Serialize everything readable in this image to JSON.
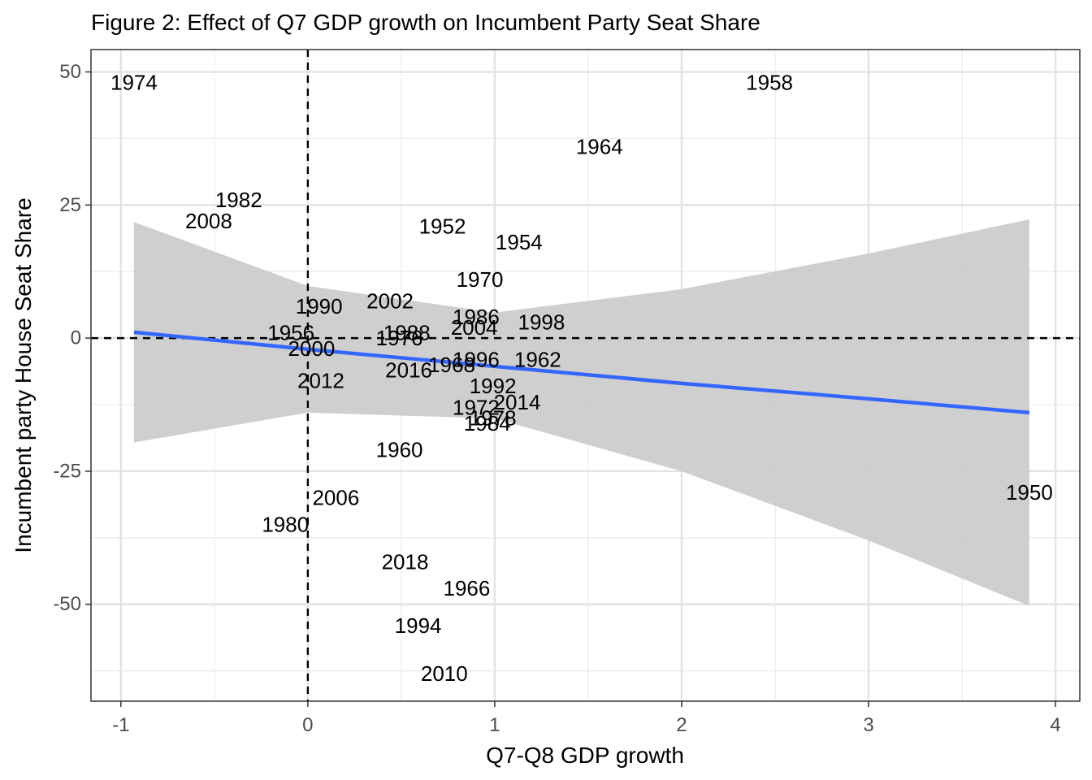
{
  "chart_data": {
    "type": "scatter",
    "title": "Figure 2: Effect of Q7 GDP growth on Incumbent Party Seat Share",
    "xlabel": "Q7-Q8 GDP growth",
    "ylabel": "Incumbent party House Seat Share",
    "xlim": [
      -1.16,
      4.13
    ],
    "ylim": [
      -68.2,
      54.2
    ],
    "x_ticks": [
      -1,
      0,
      1,
      2,
      3,
      4
    ],
    "y_ticks": [
      -50,
      -25,
      0,
      25,
      50
    ],
    "x_tick_labels": [
      "-1",
      "0",
      "1",
      "2",
      "3",
      "4"
    ],
    "y_tick_labels": [
      "-50",
      "-25",
      "0",
      "25",
      "50"
    ],
    "grid": true,
    "reference_lines": {
      "x": 0,
      "y": 0,
      "style": "dashed"
    },
    "points": [
      {
        "label": "1974",
        "x": -0.93,
        "y": 48
      },
      {
        "label": "1958",
        "x": 2.47,
        "y": 48
      },
      {
        "label": "1964",
        "x": 1.56,
        "y": 36
      },
      {
        "label": "1982",
        "x": -0.37,
        "y": 26
      },
      {
        "label": "2008",
        "x": -0.53,
        "y": 22
      },
      {
        "label": "1952",
        "x": 0.72,
        "y": 21
      },
      {
        "label": "1954",
        "x": 1.13,
        "y": 18
      },
      {
        "label": "1970",
        "x": 0.92,
        "y": 11
      },
      {
        "label": "2002",
        "x": 0.44,
        "y": 7
      },
      {
        "label": "1990",
        "x": 0.06,
        "y": 6
      },
      {
        "label": "1986",
        "x": 0.9,
        "y": 4
      },
      {
        "label": "1998",
        "x": 1.25,
        "y": 3
      },
      {
        "label": "2004",
        "x": 0.89,
        "y": 2
      },
      {
        "label": "1956",
        "x": -0.09,
        "y": 1
      },
      {
        "label": "1988",
        "x": 0.53,
        "y": 1
      },
      {
        "label": "1976",
        "x": 0.49,
        "y": 0
      },
      {
        "label": "2000",
        "x": 0.02,
        "y": -2
      },
      {
        "label": "1996",
        "x": 0.9,
        "y": -4
      },
      {
        "label": "1962",
        "x": 1.23,
        "y": -4
      },
      {
        "label": "1968",
        "x": 0.77,
        "y": -5
      },
      {
        "label": "2016",
        "x": 0.54,
        "y": -6
      },
      {
        "label": "2012",
        "x": 0.07,
        "y": -8
      },
      {
        "label": "1992",
        "x": 0.99,
        "y": -9
      },
      {
        "label": "2014",
        "x": 1.12,
        "y": -12
      },
      {
        "label": "1972",
        "x": 0.9,
        "y": -13
      },
      {
        "label": "1978",
        "x": 0.99,
        "y": -15
      },
      {
        "label": "1984",
        "x": 0.96,
        "y": -16
      },
      {
        "label": "1960",
        "x": 0.49,
        "y": -21
      },
      {
        "label": "2006",
        "x": 0.15,
        "y": -30
      },
      {
        "label": "1980",
        "x": -0.12,
        "y": -35
      },
      {
        "label": "2018",
        "x": 0.52,
        "y": -42
      },
      {
        "label": "1966",
        "x": 0.85,
        "y": -47
      },
      {
        "label": "1994",
        "x": 0.59,
        "y": -54
      },
      {
        "label": "2010",
        "x": 0.73,
        "y": -63
      },
      {
        "label": "1950",
        "x": 3.86,
        "y": -29
      }
    ],
    "fit": {
      "method": "linear",
      "color": "#3366FF",
      "band_color": "#cccccc",
      "x": [
        -0.93,
        0,
        1,
        2,
        3,
        3.86
      ],
      "y": [
        1.1,
        -2.1,
        -5.3,
        -8.5,
        -11.4,
        -14
      ],
      "ci_upper": [
        21.8,
        9.8,
        4.8,
        9.2,
        15.9,
        22.3
      ],
      "ci_lower": [
        -19.6,
        -14,
        -15.1,
        -25,
        -38,
        -50.3
      ]
    }
  }
}
